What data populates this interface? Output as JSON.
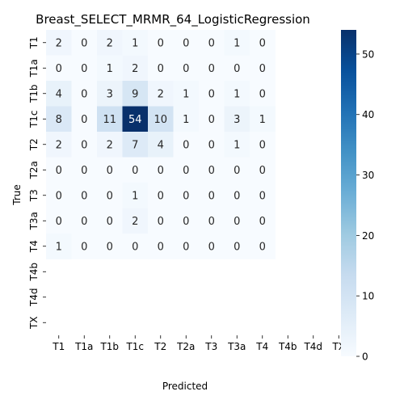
{
  "chart_data": {
    "type": "heatmap",
    "title": "Breast_SELECT_MRMR_64_LogisticRegression",
    "xlabel": "Predicted",
    "ylabel": "True",
    "x_categories": [
      "T1",
      "T1a",
      "T1b",
      "T1c",
      "T2",
      "T2a",
      "T3",
      "T3a",
      "T4",
      "T4b",
      "T4d",
      "TX"
    ],
    "y_categories": [
      "T1",
      "T1a",
      "T1b",
      "T1c",
      "T2",
      "T2a",
      "T3",
      "T3a",
      "T4",
      "T4b",
      "T4d",
      "TX"
    ],
    "values": [
      [
        2,
        0,
        2,
        1,
        0,
        0,
        0,
        1,
        0,
        null,
        null,
        null
      ],
      [
        0,
        0,
        1,
        2,
        0,
        0,
        0,
        0,
        0,
        null,
        null,
        null
      ],
      [
        4,
        0,
        3,
        9,
        2,
        1,
        0,
        1,
        0,
        null,
        null,
        null
      ],
      [
        8,
        0,
        11,
        54,
        10,
        1,
        0,
        3,
        1,
        null,
        null,
        null
      ],
      [
        2,
        0,
        2,
        7,
        4,
        0,
        0,
        1,
        0,
        null,
        null,
        null
      ],
      [
        0,
        0,
        0,
        0,
        0,
        0,
        0,
        0,
        0,
        null,
        null,
        null
      ],
      [
        0,
        0,
        0,
        1,
        0,
        0,
        0,
        0,
        0,
        null,
        null,
        null
      ],
      [
        0,
        0,
        0,
        2,
        0,
        0,
        0,
        0,
        0,
        null,
        null,
        null
      ],
      [
        1,
        0,
        0,
        0,
        0,
        0,
        0,
        0,
        0,
        null,
        null,
        null
      ],
      [
        null,
        null,
        null,
        null,
        null,
        null,
        null,
        null,
        null,
        null,
        null,
        null
      ],
      [
        null,
        null,
        null,
        null,
        null,
        null,
        null,
        null,
        null,
        null,
        null,
        null
      ],
      [
        null,
        null,
        null,
        null,
        null,
        null,
        null,
        null,
        null,
        null,
        null,
        null
      ]
    ],
    "colorbar": {
      "min": 0,
      "max": 54,
      "ticks": [
        "0",
        "10",
        "20",
        "30",
        "40",
        "50"
      ],
      "colormap": "Blues"
    },
    "grid": false
  },
  "colors": {
    "low": "#f7fbff",
    "high": "#08306b"
  }
}
